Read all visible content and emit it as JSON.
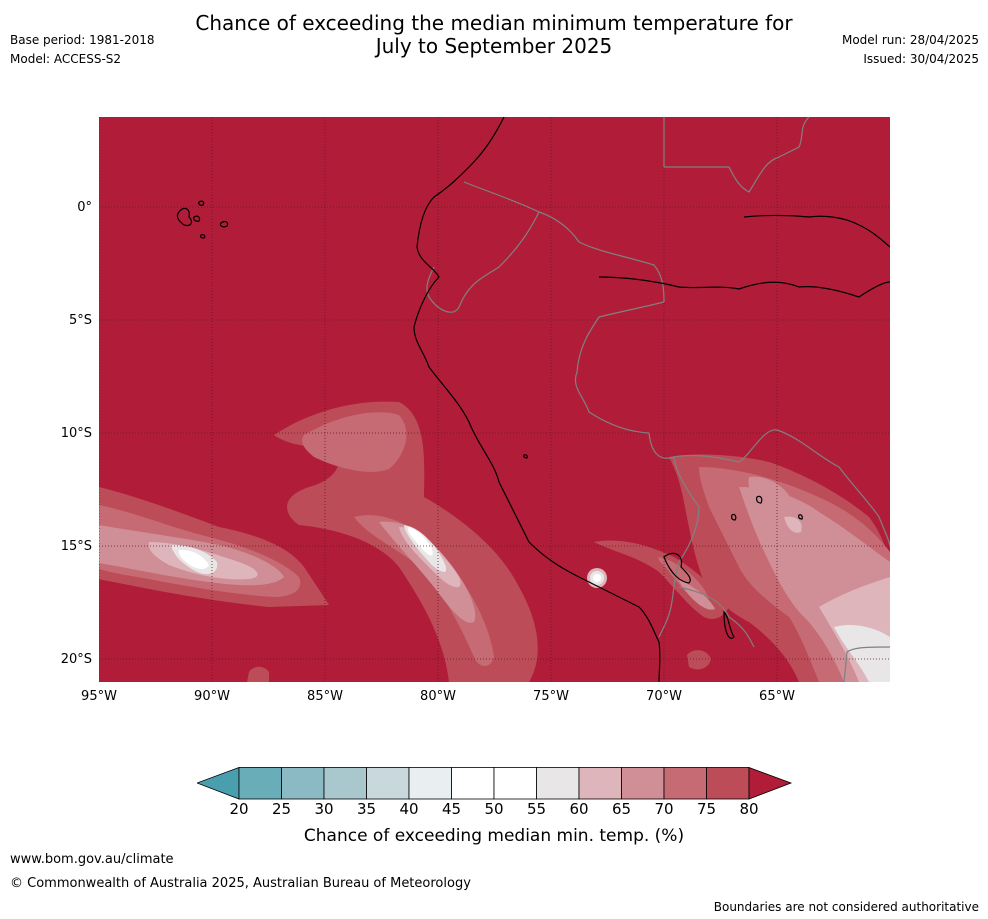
{
  "header": {
    "title_line1": "Chance of exceeding the median minimum temperature for",
    "title_line2": "July to September 2025",
    "base_period": "Base period: 1981-2018",
    "model": "Model: ACCESS-S2",
    "model_run": "Model run: 28/04/2025",
    "issued": "Issued: 30/04/2025"
  },
  "map": {
    "background_color": "#b11d39",
    "lat_labels": [
      "0°",
      "5°S",
      "10°S",
      "15°S",
      "20°S"
    ],
    "lon_labels": [
      "95°W",
      "90°W",
      "85°W",
      "80°W",
      "75°W",
      "70°W",
      "65°W"
    ]
  },
  "colorbar": {
    "ticks": [
      "20",
      "25",
      "30",
      "35",
      "40",
      "45",
      "50",
      "55",
      "60",
      "65",
      "70",
      "75",
      "80"
    ],
    "colors": [
      "#69adb9",
      "#8bbac4",
      "#a9c8ce",
      "#c9d8dd",
      "#e9eef0",
      "#ffffff",
      "#ffffff",
      "#e9e6e7",
      "#ddb5bb",
      "#d08e96",
      "#c66a74",
      "#bc4d58"
    ],
    "low_color": "#4a9fae",
    "high_color": "#b11d39",
    "label": "Chance of exceeding median min. temp. (%)"
  },
  "footer": {
    "url": "www.bom.gov.au/climate",
    "copyright": "© Commonwealth of Australia 2025, Australian Bureau of Meteorology",
    "disclaimer": "Boundaries are not considered authoritative"
  }
}
